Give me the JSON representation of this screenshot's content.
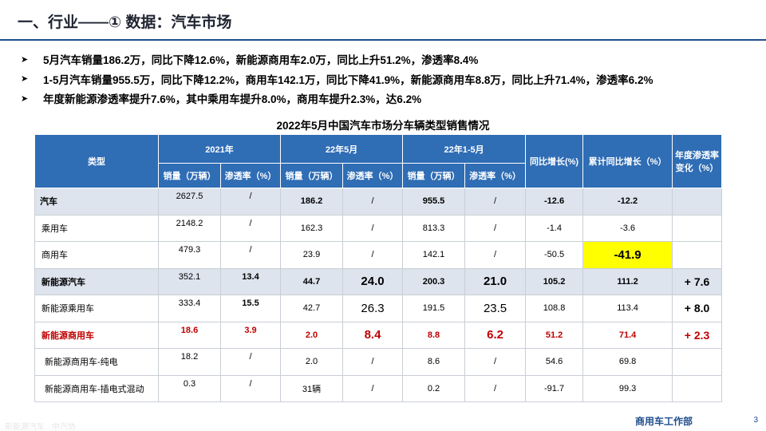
{
  "title": "一、行业——① 数据：汽车市场",
  "bullets": [
    "5月汽车销量186.2万，同比下降12.6%，新能源商用车2.0万，同比上升51.2%，渗透率8.4%",
    "1-5月汽车销量955.5万，同比下降12.2%，商用车142.1万，同比下降41.9%，新能源商用车8.8万，同比上升71.4%，渗透率6.2%",
    "年度新能源渗透率提升7.6%，其中乘用车提升8.0%，商用车提升2.3%，达6.2%"
  ],
  "bullet_icon": "arrow-bullet-icon",
  "table": {
    "title": "2022年5月中国汽车市场分车辆类型销售情况",
    "header": {
      "type": "类型",
      "group1": "2021年",
      "group2": "22年5月",
      "group3": "22年1-5月",
      "yoy": "同比增长(%)",
      "cum_yoy": "累计同比增长（%）",
      "annual_change": "年度渗透率变化（%）",
      "sales": "销量（万辆）",
      "pen": "渗透率（%）"
    },
    "rows": [
      {
        "name": "汽车",
        "s21": "2627.5",
        "p21": "/",
        "s5": "186.2",
        "p5": "/",
        "s15": "955.5",
        "p15": "/",
        "yoy": "-12.6",
        "cyoy": "-12.2",
        "chg": ""
      },
      {
        "name": "乘用车",
        "s21": "2148.2",
        "p21": "/",
        "s5": "162.3",
        "p5": "/",
        "s15": "813.3",
        "p15": "/",
        "yoy": "-1.4",
        "cyoy": "-3.6",
        "chg": ""
      },
      {
        "name": "商用车",
        "s21": "479.3",
        "p21": "/",
        "s5": "23.9",
        "p5": "/",
        "s15": "142.1",
        "p15": "/",
        "yoy": "-50.5",
        "cyoy": "-41.9",
        "chg": ""
      },
      {
        "name": "新能源汽车",
        "s21": "352.1",
        "p21": "13.4",
        "s5": "44.7",
        "p5": "24.0",
        "s15": "200.3",
        "p15": "21.0",
        "yoy": "105.2",
        "cyoy": "111.2",
        "chg": "+ 7.6"
      },
      {
        "name": "新能源乘用车",
        "s21": "333.4",
        "p21": "15.5",
        "s5": "42.7",
        "p5": "26.3",
        "s15": "191.5",
        "p15": "23.5",
        "yoy": "108.8",
        "cyoy": "113.4",
        "chg": "+ 8.0"
      },
      {
        "name": "新能源商用车",
        "s21": "18.6",
        "p21": "3.9",
        "s5": "2.0",
        "p5": "8.4",
        "s15": "8.8",
        "p15": "6.2",
        "yoy": "51.2",
        "cyoy": "71.4",
        "chg": "+ 2.3"
      },
      {
        "name": "新能源商用车-纯电",
        "s21": "18.2",
        "p21": "/",
        "s5": "2.0",
        "p5": "/",
        "s15": "8.6",
        "p15": "/",
        "yoy": "54.6",
        "cyoy": "69.8",
        "chg": ""
      },
      {
        "name": "新能源商用车-插电式混动",
        "s21": "0.3",
        "p21": "/",
        "s5": "31辆",
        "p5": "/",
        "s15": "0.2",
        "p15": "/",
        "yoy": "-91.7",
        "cyoy": "99.3",
        "chg": ""
      }
    ]
  },
  "colors": {
    "header_bg": "#2f6db5",
    "shade_bg": "#dde4ee",
    "highlight": "#ffff00",
    "red_text": "#c00000",
    "accent_line": "#1f4e8c"
  },
  "footer": "商用车工作部",
  "page_number": "3",
  "watermark": "新能源汽车 · 中汽协"
}
